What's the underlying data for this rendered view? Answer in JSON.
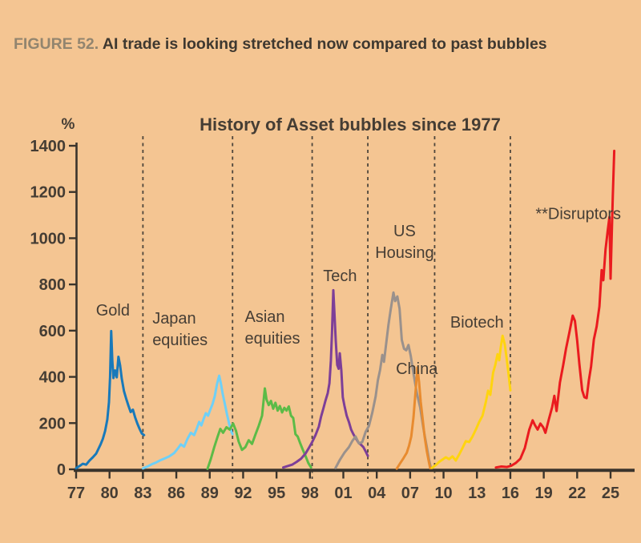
{
  "figure": {
    "label": "FIGURE 52.",
    "title": "AI trade is looking stretched now compared to past bubbles"
  },
  "colors": {
    "background": "#f4c592",
    "caption_label": "#92856f",
    "caption_text": "#3e3830",
    "axis": "#3a342c",
    "tick_text": "#453d34",
    "annotation_text": "#463e35",
    "divider": "#4e463c"
  },
  "chart_data": {
    "type": "line",
    "title": "History of Asset bubbles since 1977",
    "ylabel": "%",
    "xlabel": "",
    "ylim": [
      0,
      1400
    ],
    "xlim": [
      1976.7,
      2026.3
    ],
    "grid": false,
    "legend_position": "inline-annotations",
    "y_ticks": [
      0,
      200,
      400,
      600,
      800,
      1000,
      1200,
      1400
    ],
    "x_tick_years": [
      1977,
      1980,
      1983,
      1986,
      1989,
      1992,
      1995,
      1998,
      2001,
      2004,
      2007,
      2010,
      2013,
      2016,
      2019,
      2022,
      2025
    ],
    "x_tick_labels": [
      "77",
      "80",
      "83",
      "86",
      "89",
      "92",
      "95",
      "98",
      "01",
      "04",
      "07",
      "10",
      "13",
      "16",
      "19",
      "22",
      "25"
    ],
    "divider_years": [
      1983.0,
      1991.05,
      1998.2,
      2003.2,
      2009.2,
      2016.0
    ],
    "series": [
      {
        "name": "Gold",
        "color": "#1879ba",
        "points": [
          [
            1977.0,
            5
          ],
          [
            1977.3,
            14
          ],
          [
            1977.6,
            24
          ],
          [
            1977.9,
            20
          ],
          [
            1978.2,
            38
          ],
          [
            1978.5,
            52
          ],
          [
            1978.8,
            68
          ],
          [
            1979.0,
            88
          ],
          [
            1979.2,
            108
          ],
          [
            1979.4,
            132
          ],
          [
            1979.6,
            165
          ],
          [
            1979.8,
            215
          ],
          [
            1979.95,
            290
          ],
          [
            1980.05,
            400
          ],
          [
            1980.15,
            598
          ],
          [
            1980.25,
            470
          ],
          [
            1980.35,
            395
          ],
          [
            1980.5,
            428
          ],
          [
            1980.65,
            398
          ],
          [
            1980.8,
            487
          ],
          [
            1980.95,
            450
          ],
          [
            1981.1,
            392
          ],
          [
            1981.3,
            338
          ],
          [
            1981.5,
            305
          ],
          [
            1981.7,
            275
          ],
          [
            1981.9,
            248
          ],
          [
            1982.1,
            258
          ],
          [
            1982.3,
            225
          ],
          [
            1982.5,
            198
          ],
          [
            1982.7,
            175
          ],
          [
            1982.9,
            155
          ],
          [
            1983.1,
            148
          ]
        ]
      },
      {
        "name": "Japan equities",
        "color": "#6ed0f7",
        "points": [
          [
            1983.0,
            4
          ],
          [
            1983.4,
            12
          ],
          [
            1983.8,
            22
          ],
          [
            1984.2,
            30
          ],
          [
            1984.6,
            40
          ],
          [
            1985.0,
            48
          ],
          [
            1985.4,
            57
          ],
          [
            1985.8,
            70
          ],
          [
            1986.1,
            88
          ],
          [
            1986.4,
            108
          ],
          [
            1986.7,
            98
          ],
          [
            1987.0,
            132
          ],
          [
            1987.3,
            158
          ],
          [
            1987.6,
            148
          ],
          [
            1987.85,
            178
          ],
          [
            1988.05,
            205
          ],
          [
            1988.25,
            190
          ],
          [
            1988.45,
            218
          ],
          [
            1988.65,
            243
          ],
          [
            1988.85,
            232
          ],
          [
            1989.05,
            258
          ],
          [
            1989.25,
            282
          ],
          [
            1989.45,
            316
          ],
          [
            1989.65,
            368
          ],
          [
            1989.85,
            405
          ],
          [
            1990.0,
            372
          ],
          [
            1990.15,
            330
          ],
          [
            1990.35,
            285
          ],
          [
            1990.55,
            238
          ],
          [
            1990.75,
            196
          ],
          [
            1990.95,
            162
          ],
          [
            1991.05,
            152
          ]
        ]
      },
      {
        "name": "Asian equities",
        "color": "#5cbb47",
        "points": [
          [
            1988.8,
            2
          ],
          [
            1989.1,
            45
          ],
          [
            1989.4,
            95
          ],
          [
            1989.7,
            140
          ],
          [
            1989.95,
            175
          ],
          [
            1990.2,
            158
          ],
          [
            1990.5,
            182
          ],
          [
            1990.8,
            172
          ],
          [
            1991.1,
            198
          ],
          [
            1991.35,
            168
          ],
          [
            1991.6,
            120
          ],
          [
            1991.9,
            84
          ],
          [
            1992.2,
            96
          ],
          [
            1992.5,
            126
          ],
          [
            1992.8,
            110
          ],
          [
            1993.1,
            150
          ],
          [
            1993.4,
            188
          ],
          [
            1993.7,
            232
          ],
          [
            1993.95,
            350
          ],
          [
            1994.1,
            302
          ],
          [
            1994.3,
            278
          ],
          [
            1994.5,
            296
          ],
          [
            1994.7,
            262
          ],
          [
            1994.9,
            288
          ],
          [
            1995.1,
            254
          ],
          [
            1995.3,
            274
          ],
          [
            1995.5,
            246
          ],
          [
            1995.7,
            266
          ],
          [
            1995.9,
            254
          ],
          [
            1996.1,
            272
          ],
          [
            1996.3,
            232
          ],
          [
            1996.5,
            222
          ],
          [
            1996.7,
            152
          ],
          [
            1996.9,
            142
          ],
          [
            1997.1,
            116
          ],
          [
            1997.35,
            86
          ],
          [
            1997.6,
            58
          ],
          [
            1997.85,
            28
          ],
          [
            1998.1,
            8
          ]
        ]
      },
      {
        "name": "Tech",
        "color": "#7d3f98",
        "points": [
          [
            1995.6,
            8
          ],
          [
            1996.0,
            14
          ],
          [
            1996.4,
            20
          ],
          [
            1996.8,
            32
          ],
          [
            1997.2,
            46
          ],
          [
            1997.6,
            68
          ],
          [
            1997.9,
            92
          ],
          [
            1998.2,
            118
          ],
          [
            1998.5,
            148
          ],
          [
            1998.8,
            185
          ],
          [
            1999.0,
            228
          ],
          [
            1999.2,
            262
          ],
          [
            1999.4,
            298
          ],
          [
            1999.6,
            330
          ],
          [
            1999.75,
            372
          ],
          [
            1999.88,
            470
          ],
          [
            1999.98,
            590
          ],
          [
            2000.1,
            775
          ],
          [
            2000.22,
            655
          ],
          [
            2000.32,
            555
          ],
          [
            2000.45,
            452
          ],
          [
            2000.58,
            435
          ],
          [
            2000.68,
            502
          ],
          [
            2000.82,
            428
          ],
          [
            2000.95,
            312
          ],
          [
            2001.1,
            275
          ],
          [
            2001.3,
            232
          ],
          [
            2001.5,
            205
          ],
          [
            2001.7,
            172
          ],
          [
            2001.9,
            152
          ],
          [
            2002.1,
            136
          ],
          [
            2002.35,
            116
          ],
          [
            2002.6,
            106
          ],
          [
            2002.8,
            96
          ],
          [
            2003.0,
            78
          ],
          [
            2003.2,
            58
          ]
        ]
      },
      {
        "name": "US Housing",
        "color": "#9a918c",
        "points": [
          [
            2000.3,
            6
          ],
          [
            2000.7,
            42
          ],
          [
            2001.1,
            72
          ],
          [
            2001.5,
            96
          ],
          [
            2001.8,
            122
          ],
          [
            2002.1,
            142
          ],
          [
            2002.4,
            112
          ],
          [
            2002.7,
            118
          ],
          [
            2003.0,
            162
          ],
          [
            2003.3,
            188
          ],
          [
            2003.6,
            245
          ],
          [
            2003.9,
            315
          ],
          [
            2004.1,
            385
          ],
          [
            2004.3,
            430
          ],
          [
            2004.5,
            495
          ],
          [
            2004.65,
            465
          ],
          [
            2004.85,
            545
          ],
          [
            2005.05,
            625
          ],
          [
            2005.25,
            690
          ],
          [
            2005.5,
            765
          ],
          [
            2005.65,
            728
          ],
          [
            2005.85,
            748
          ],
          [
            2006.05,
            695
          ],
          [
            2006.25,
            560
          ],
          [
            2006.45,
            522
          ],
          [
            2006.65,
            515
          ],
          [
            2006.85,
            538
          ],
          [
            2007.05,
            492
          ],
          [
            2007.3,
            415
          ],
          [
            2007.6,
            330
          ],
          [
            2007.9,
            268
          ],
          [
            2008.2,
            175
          ],
          [
            2008.5,
            95
          ],
          [
            2008.7,
            40
          ],
          [
            2008.85,
            8
          ]
        ]
      },
      {
        "name": "China",
        "color": "#e88b2f",
        "points": [
          [
            2005.8,
            3
          ],
          [
            2006.1,
            26
          ],
          [
            2006.4,
            48
          ],
          [
            2006.7,
            72
          ],
          [
            2006.9,
            102
          ],
          [
            2007.1,
            142
          ],
          [
            2007.3,
            225
          ],
          [
            2007.5,
            345
          ],
          [
            2007.65,
            440
          ],
          [
            2007.8,
            378
          ],
          [
            2007.95,
            292
          ],
          [
            2008.1,
            228
          ],
          [
            2008.3,
            142
          ],
          [
            2008.5,
            78
          ],
          [
            2008.7,
            28
          ],
          [
            2008.8,
            5
          ]
        ]
      },
      {
        "name": "Biotech",
        "color": "#ffd40f",
        "points": [
          [
            2008.95,
            6
          ],
          [
            2009.3,
            18
          ],
          [
            2009.6,
            32
          ],
          [
            2009.9,
            42
          ],
          [
            2010.2,
            52
          ],
          [
            2010.5,
            44
          ],
          [
            2010.8,
            56
          ],
          [
            2011.1,
            38
          ],
          [
            2011.4,
            64
          ],
          [
            2011.7,
            92
          ],
          [
            2012.0,
            122
          ],
          [
            2012.3,
            118
          ],
          [
            2012.6,
            142
          ],
          [
            2012.9,
            172
          ],
          [
            2013.2,
            205
          ],
          [
            2013.5,
            232
          ],
          [
            2013.8,
            292
          ],
          [
            2014.0,
            340
          ],
          [
            2014.2,
            322
          ],
          [
            2014.45,
            418
          ],
          [
            2014.65,
            452
          ],
          [
            2014.85,
            498
          ],
          [
            2015.0,
            472
          ],
          [
            2015.12,
            522
          ],
          [
            2015.3,
            578
          ],
          [
            2015.5,
            540
          ],
          [
            2015.7,
            468
          ],
          [
            2015.85,
            408
          ],
          [
            2016.0,
            342
          ]
        ]
      },
      {
        "name": "Disruptors",
        "color": "#ea1b1f",
        "points": [
          [
            2014.7,
            8
          ],
          [
            2015.2,
            12
          ],
          [
            2015.7,
            10
          ],
          [
            2016.1,
            16
          ],
          [
            2016.5,
            28
          ],
          [
            2016.9,
            46
          ],
          [
            2017.3,
            92
          ],
          [
            2017.7,
            172
          ],
          [
            2018.0,
            212
          ],
          [
            2018.2,
            192
          ],
          [
            2018.45,
            172
          ],
          [
            2018.7,
            198
          ],
          [
            2018.95,
            182
          ],
          [
            2019.15,
            158
          ],
          [
            2019.45,
            215
          ],
          [
            2019.75,
            268
          ],
          [
            2019.95,
            318
          ],
          [
            2020.15,
            252
          ],
          [
            2020.45,
            375
          ],
          [
            2020.75,
            452
          ],
          [
            2021.0,
            522
          ],
          [
            2021.3,
            592
          ],
          [
            2021.6,
            665
          ],
          [
            2021.8,
            642
          ],
          [
            2022.0,
            558
          ],
          [
            2022.2,
            455
          ],
          [
            2022.45,
            342
          ],
          [
            2022.65,
            312
          ],
          [
            2022.85,
            308
          ],
          [
            2023.05,
            385
          ],
          [
            2023.25,
            445
          ],
          [
            2023.5,
            562
          ],
          [
            2023.75,
            618
          ],
          [
            2024.0,
            705
          ],
          [
            2024.2,
            862
          ],
          [
            2024.35,
            818
          ],
          [
            2024.55,
            952
          ],
          [
            2024.75,
            1035
          ],
          [
            2024.9,
            1092
          ],
          [
            2025.0,
            825
          ],
          [
            2025.1,
            1005
          ],
          [
            2025.2,
            1180
          ],
          [
            2025.33,
            1378
          ]
        ]
      }
    ],
    "annotations": [
      {
        "text": "Gold",
        "year": 1980.3,
        "value": 690,
        "anchor": "middle"
      },
      {
        "text": "Japan\nequities",
        "year": 1983.85,
        "value": 655,
        "anchor": "start"
      },
      {
        "text": "Asian\nequities",
        "year": 1992.15,
        "value": 662,
        "anchor": "start"
      },
      {
        "text": "Tech",
        "year": 2000.7,
        "value": 838,
        "anchor": "middle"
      },
      {
        "text": "US\nHousing",
        "year": 2006.5,
        "value": 1032,
        "anchor": "middle"
      },
      {
        "text": "China",
        "year": 2007.6,
        "value": 437,
        "anchor": "middle"
      },
      {
        "text": "Biotech",
        "year": 2013.0,
        "value": 638,
        "anchor": "middle"
      },
      {
        "text": "**Disruptors",
        "year": 2022.1,
        "value": 1108,
        "anchor": "middle"
      }
    ]
  }
}
